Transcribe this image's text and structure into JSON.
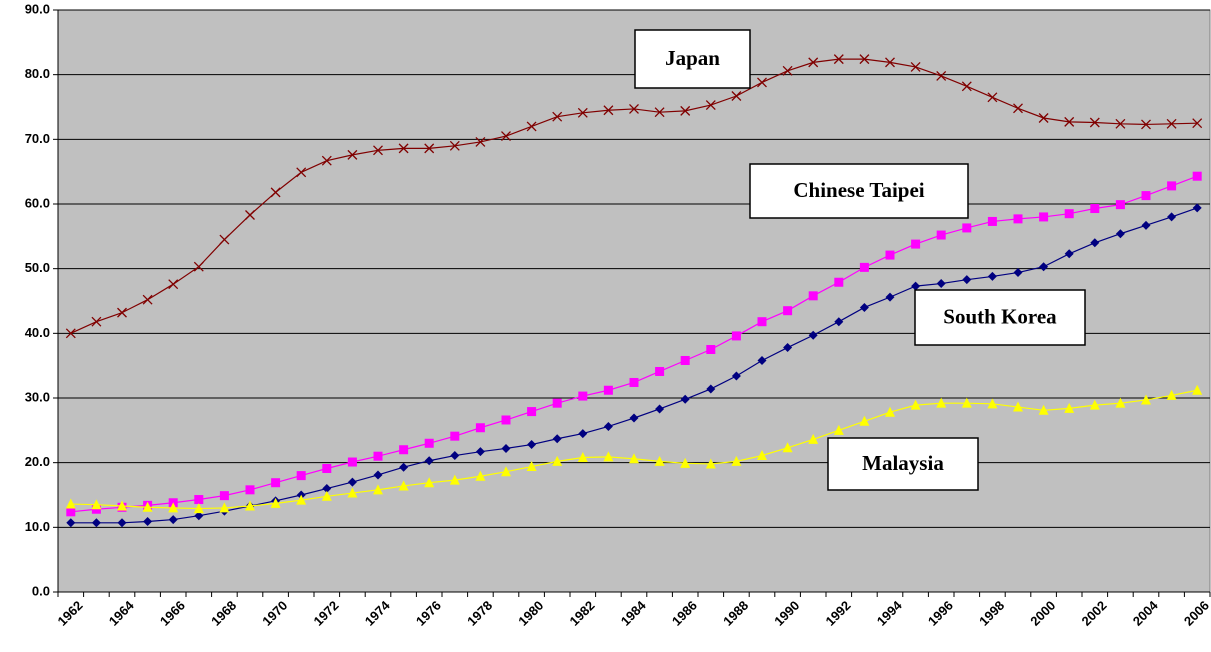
{
  "chart_data": {
    "type": "line",
    "categories": [
      "1962",
      null,
      "1964",
      null,
      "1966",
      null,
      "1968",
      null,
      "1970",
      null,
      "1972",
      null,
      "1974",
      null,
      "1976",
      null,
      "1978",
      null,
      "1980",
      null,
      "1982",
      null,
      "1984",
      null,
      "1986",
      null,
      "1988",
      null,
      "1990",
      null,
      "1992",
      null,
      "1994",
      null,
      "1996",
      null,
      "1998",
      null,
      "2000",
      null,
      "2002",
      null,
      "2004",
      null,
      "2006"
    ],
    "series": [
      {
        "name": "Japan",
        "color": "#800000",
        "marker": "x",
        "values": [
          40.0,
          41.8,
          43.2,
          45.2,
          47.6,
          50.3,
          54.5,
          58.3,
          61.8,
          64.9,
          66.7,
          67.6,
          68.3,
          68.6,
          68.6,
          69.0,
          69.6,
          70.5,
          72.0,
          73.5,
          74.1,
          74.5,
          74.7,
          74.2,
          74.4,
          75.3,
          76.7,
          78.8,
          80.6,
          81.9,
          82.4,
          82.4,
          81.9,
          81.2,
          79.8,
          78.2,
          76.5,
          74.8,
          73.3,
          72.7,
          72.6,
          72.4,
          72.3,
          72.4,
          72.5
        ]
      },
      {
        "name": "Chinese Taipei",
        "color": "#ff00ff",
        "marker": "square",
        "values": [
          12.4,
          12.8,
          13.1,
          13.4,
          13.8,
          14.3,
          14.9,
          15.8,
          16.9,
          18.0,
          19.1,
          20.1,
          21.0,
          22.0,
          23.0,
          24.1,
          25.4,
          26.6,
          27.9,
          29.2,
          30.3,
          31.2,
          32.4,
          34.1,
          35.8,
          37.5,
          39.6,
          41.8,
          43.5,
          45.8,
          47.9,
          50.2,
          52.1,
          53.8,
          55.2,
          56.3,
          57.3,
          57.7,
          58.0,
          58.5,
          59.3,
          59.9,
          61.3,
          62.8,
          64.3
        ]
      },
      {
        "name": "South Korea",
        "color": "#000080",
        "marker": "diamond",
        "values": [
          10.7,
          10.7,
          10.7,
          10.9,
          11.2,
          11.8,
          12.5,
          13.3,
          14.1,
          15.0,
          16.0,
          17.0,
          18.1,
          19.3,
          20.3,
          21.1,
          21.7,
          22.2,
          22.8,
          23.7,
          24.5,
          25.6,
          26.9,
          28.3,
          29.8,
          31.4,
          33.4,
          35.8,
          37.8,
          39.7,
          41.8,
          44.0,
          45.6,
          47.3,
          47.7,
          48.3,
          48.8,
          49.4,
          50.3,
          52.3,
          54.0,
          55.4,
          56.7,
          58.0,
          59.4
        ]
      },
      {
        "name": "Malaysia",
        "color": "#ffff00",
        "marker": "triangle",
        "values": [
          13.6,
          13.5,
          13.3,
          13.1,
          13.0,
          12.9,
          13.0,
          13.3,
          13.7,
          14.2,
          14.8,
          15.3,
          15.8,
          16.4,
          16.9,
          17.3,
          17.9,
          18.6,
          19.4,
          20.2,
          20.8,
          20.9,
          20.6,
          20.2,
          19.9,
          19.8,
          20.2,
          21.1,
          22.3,
          23.6,
          25.0,
          26.4,
          27.8,
          28.9,
          29.2,
          29.2,
          29.1,
          28.6,
          28.1,
          28.4,
          28.9,
          29.2,
          29.7,
          30.4,
          31.2
        ]
      }
    ],
    "ylim": [
      0,
      90
    ],
    "yticks": [
      {
        "value": 0,
        "label": "0.0"
      },
      {
        "value": 10,
        "label": "10.0"
      },
      {
        "value": 20,
        "label": "20.0"
      },
      {
        "value": 30,
        "label": "30.0"
      },
      {
        "value": 40,
        "label": "40.0"
      },
      {
        "value": 50,
        "label": "50.0"
      },
      {
        "value": 60,
        "label": "60.0"
      },
      {
        "value": 70,
        "label": "70.0"
      },
      {
        "value": 80,
        "label": "80.0"
      },
      {
        "value": 90,
        "label": "90.0"
      }
    ],
    "grid": true,
    "background": "#c0c0c0"
  }
}
